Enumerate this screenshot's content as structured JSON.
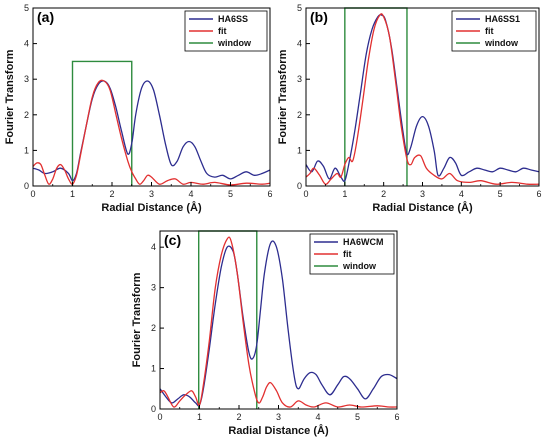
{
  "chart_data": [
    {
      "type": "line",
      "panel_label": "(a)",
      "xlabel": "Radial Distance (Å)",
      "ylabel": "Fourier Transform",
      "xlim": [
        0,
        6
      ],
      "ylim": [
        0,
        5
      ],
      "xticks": [
        "0",
        "1",
        "2",
        "3",
        "4",
        "5",
        "6"
      ],
      "yticks": [
        "0",
        "1",
        "2",
        "3",
        "4",
        "5"
      ],
      "legend_position": "top-right",
      "series": [
        {
          "name": "HA6SS",
          "color": "#2d2d8f",
          "x": [
            0,
            0.15,
            0.3,
            0.5,
            0.7,
            0.9,
            1.0,
            1.1,
            1.2,
            1.35,
            1.5,
            1.65,
            1.8,
            1.95,
            2.1,
            2.25,
            2.4,
            2.5,
            2.6,
            2.75,
            2.9,
            3.05,
            3.2,
            3.35,
            3.5,
            3.65,
            3.8,
            3.95,
            4.1,
            4.25,
            4.4,
            4.6,
            4.8,
            5.0,
            5.2,
            5.4,
            5.6,
            5.8,
            6.0
          ],
          "y": [
            0.5,
            0.45,
            0.35,
            0.4,
            0.5,
            0.35,
            0.15,
            0.35,
            0.9,
            1.7,
            2.45,
            2.85,
            2.95,
            2.75,
            2.2,
            1.5,
            0.9,
            1.2,
            2.0,
            2.75,
            2.95,
            2.7,
            2.0,
            1.2,
            0.6,
            0.7,
            1.1,
            1.25,
            1.1,
            0.7,
            0.35,
            0.25,
            0.3,
            0.2,
            0.3,
            0.4,
            0.3,
            0.35,
            0.45
          ]
        },
        {
          "name": "fit",
          "color": "#e23030",
          "x": [
            0,
            0.1,
            0.2,
            0.3,
            0.4,
            0.5,
            0.6,
            0.7,
            0.8,
            0.9,
            1.0,
            1.1,
            1.2,
            1.35,
            1.5,
            1.65,
            1.8,
            1.95,
            2.1,
            2.25,
            2.4,
            2.5,
            2.6,
            2.7,
            2.8,
            2.9,
            3.0,
            3.2,
            3.4,
            3.6,
            3.8,
            4.0,
            4.3,
            4.6,
            5.0,
            5.4,
            5.8,
            6.0
          ],
          "y": [
            0.55,
            0.65,
            0.6,
            0.3,
            0.05,
            0.2,
            0.5,
            0.6,
            0.45,
            0.2,
            0.05,
            0.3,
            0.85,
            1.7,
            2.5,
            2.9,
            2.95,
            2.7,
            2.0,
            1.3,
            0.7,
            0.4,
            0.2,
            0.05,
            0.15,
            0.3,
            0.25,
            0.05,
            0.15,
            0.2,
            0.05,
            0.1,
            0.05,
            0.1,
            0.03,
            0.08,
            0.05,
            0.08
          ]
        }
      ],
      "window": {
        "name": "window",
        "color": "#2e8b3e",
        "x_start": 1.0,
        "x_end": 2.5,
        "height": 3.5
      }
    },
    {
      "type": "line",
      "panel_label": "(b)",
      "xlabel": "Radial Distance (Å)",
      "ylabel": "Fourier Transform",
      "xlim": [
        0,
        6
      ],
      "ylim": [
        0,
        5
      ],
      "xticks": [
        "0",
        "1",
        "2",
        "3",
        "4",
        "5",
        "6"
      ],
      "yticks": [
        "0",
        "1",
        "2",
        "3",
        "4",
        "5"
      ],
      "legend_position": "top-right",
      "series": [
        {
          "name": "HA6SS1",
          "color": "#2d2d8f",
          "x": [
            0,
            0.15,
            0.3,
            0.45,
            0.6,
            0.75,
            0.9,
            1.0,
            1.1,
            1.25,
            1.4,
            1.55,
            1.7,
            1.85,
            1.95,
            2.05,
            2.2,
            2.35,
            2.5,
            2.6,
            2.7,
            2.85,
            3.0,
            3.15,
            3.3,
            3.4,
            3.55,
            3.7,
            3.85,
            4.0,
            4.2,
            4.4,
            4.6,
            4.8,
            5.0,
            5.2,
            5.4,
            5.6,
            5.8,
            6.0
          ],
          "y": [
            0.6,
            0.4,
            0.7,
            0.55,
            0.2,
            0.5,
            0.25,
            0.15,
            0.6,
            1.5,
            2.6,
            3.7,
            4.4,
            4.75,
            4.8,
            4.65,
            3.9,
            2.7,
            1.5,
            0.9,
            1.1,
            1.7,
            1.95,
            1.7,
            1.0,
            0.3,
            0.5,
            0.8,
            0.65,
            0.3,
            0.4,
            0.5,
            0.45,
            0.4,
            0.5,
            0.45,
            0.4,
            0.5,
            0.45,
            0.4
          ]
        },
        {
          "name": "fit",
          "color": "#e23030",
          "x": [
            0,
            0.1,
            0.2,
            0.35,
            0.5,
            0.65,
            0.8,
            0.9,
            1.0,
            1.1,
            1.2,
            1.3,
            1.45,
            1.6,
            1.75,
            1.9,
            2.0,
            2.15,
            2.3,
            2.45,
            2.6,
            2.7,
            2.8,
            2.95,
            3.1,
            3.3,
            3.5,
            3.7,
            3.9,
            4.2,
            4.5,
            4.9,
            5.3,
            5.7,
            6.0
          ],
          "y": [
            0.25,
            0.35,
            0.5,
            0.3,
            0.05,
            0.2,
            0.35,
            0.25,
            0.6,
            0.8,
            0.7,
            1.2,
            2.3,
            3.5,
            4.4,
            4.8,
            4.75,
            4.2,
            3.0,
            1.7,
            0.75,
            0.6,
            0.8,
            0.85,
            0.5,
            0.3,
            0.2,
            0.35,
            0.15,
            0.1,
            0.15,
            0.05,
            0.1,
            0.05,
            0.05
          ]
        }
      ],
      "window": {
        "name": "window",
        "color": "#2e8b3e",
        "x_start": 1.0,
        "x_end": 2.6,
        "height": 5.0
      }
    },
    {
      "type": "line",
      "panel_label": "(c)",
      "xlabel": "Radial Distance (Å)",
      "ylabel": "Fourier Transform",
      "xlim": [
        0,
        6
      ],
      "ylim": [
        0,
        4.4
      ],
      "xticks": [
        "0",
        "1",
        "2",
        "3",
        "4",
        "5",
        "6"
      ],
      "yticks": [
        "0",
        "1",
        "2",
        "3",
        "4"
      ],
      "legend_position": "top-right",
      "series": [
        {
          "name": "HA6WCM",
          "color": "#2d2d8f",
          "x": [
            0,
            0.15,
            0.3,
            0.45,
            0.6,
            0.75,
            0.9,
            1.0,
            1.1,
            1.25,
            1.4,
            1.55,
            1.7,
            1.85,
            1.95,
            2.1,
            2.25,
            2.35,
            2.45,
            2.55,
            2.65,
            2.8,
            2.95,
            3.1,
            3.25,
            3.4,
            3.5,
            3.65,
            3.8,
            3.95,
            4.1,
            4.3,
            4.5,
            4.65,
            4.8,
            5.0,
            5.2,
            5.4,
            5.6,
            5.8,
            6.0
          ],
          "y": [
            0.5,
            0.3,
            0.15,
            0.25,
            0.35,
            0.3,
            0.15,
            0.1,
            0.5,
            1.5,
            2.6,
            3.5,
            4.0,
            3.9,
            3.4,
            2.3,
            1.4,
            1.25,
            1.6,
            2.5,
            3.4,
            4.1,
            4.0,
            3.2,
            1.9,
            0.8,
            0.5,
            0.75,
            0.9,
            0.85,
            0.6,
            0.35,
            0.6,
            0.8,
            0.75,
            0.5,
            0.25,
            0.5,
            0.8,
            0.85,
            0.75
          ]
        },
        {
          "name": "fit",
          "color": "#e23030",
          "x": [
            0,
            0.1,
            0.2,
            0.35,
            0.5,
            0.65,
            0.8,
            0.9,
            1.0,
            1.1,
            1.25,
            1.4,
            1.55,
            1.7,
            1.8,
            1.95,
            2.1,
            2.25,
            2.4,
            2.5,
            2.6,
            2.7,
            2.8,
            2.95,
            3.1,
            3.3,
            3.5,
            3.7,
            3.9,
            4.2,
            4.5,
            4.8,
            5.1,
            5.5,
            5.8,
            6.0
          ],
          "y": [
            0.4,
            0.45,
            0.3,
            0.05,
            0.2,
            0.35,
            0.45,
            0.3,
            0.1,
            0.6,
            1.7,
            3.0,
            3.8,
            4.2,
            4.15,
            3.4,
            2.2,
            1.1,
            0.4,
            0.15,
            0.3,
            0.55,
            0.65,
            0.45,
            0.15,
            0.05,
            0.2,
            0.1,
            0.05,
            0.15,
            0.05,
            0.1,
            0.05,
            0.08,
            0.05,
            0.05
          ]
        }
      ],
      "window": {
        "name": "window",
        "color": "#2e8b3e",
        "x_start": 0.98,
        "x_end": 2.45,
        "height": 4.4
      }
    }
  ]
}
